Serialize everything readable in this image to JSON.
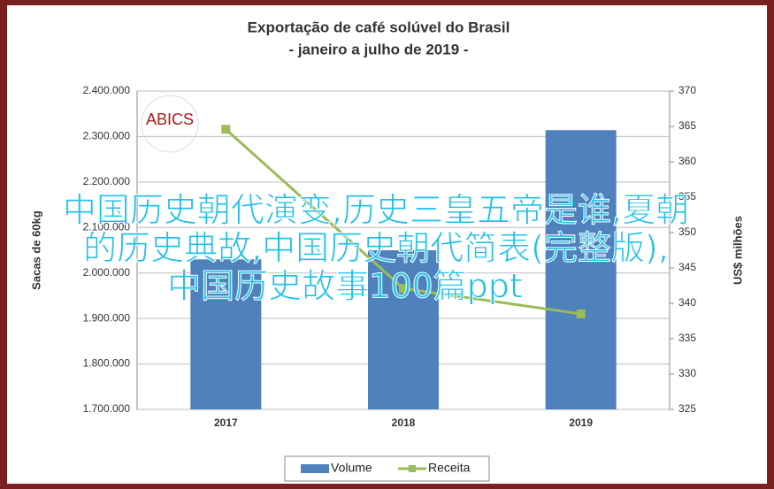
{
  "chart_data": {
    "type": "bar-line",
    "title": "Exportação de café solúvel do Brasil",
    "subtitle": "- janeiro a julho de 2019 -",
    "y_label": "Sacas de 60kg",
    "y2_label": "US$ milhões",
    "logo": "ABICS",
    "categories": [
      "2017",
      "2018",
      "2019"
    ],
    "series": [
      {
        "name": "Volume",
        "type": "bar",
        "color": "#4f81bd",
        "values": [
          2030000,
          2050000,
          2314000
        ]
      },
      {
        "name": "Receita",
        "type": "line",
        "color": "#9bbb59",
        "axis": "y2",
        "values": [
          364.6,
          342.1,
          338.5
        ]
      }
    ],
    "ylim": [
      1700000,
      2400000
    ],
    "yticks": [
      {
        "value": 1700000,
        "label": "1.700.000"
      },
      {
        "value": 1800000,
        "label": "1.800.000"
      },
      {
        "value": 1900000,
        "label": "1.900.000"
      },
      {
        "value": 2000000,
        "label": "2.000.000"
      },
      {
        "value": 2100000,
        "label": "2.100.000"
      },
      {
        "value": 2200000,
        "label": "2.200.000"
      },
      {
        "value": 2300000,
        "label": "2.300.000"
      },
      {
        "value": 2400000,
        "label": "2.400.000"
      }
    ],
    "y2lim": [
      325,
      370
    ],
    "y2ticks": [
      325,
      330,
      335,
      340,
      345,
      350,
      355,
      360,
      365,
      370
    ],
    "grid": true,
    "legend": "bottom",
    "overlay_text": [
      "中国历史朝代演变,历史三皇五帝是谁,夏朝",
      "的历史典故,中国历史朝代简表(完整版),",
      "中国历史故事100篇ppt"
    ]
  }
}
